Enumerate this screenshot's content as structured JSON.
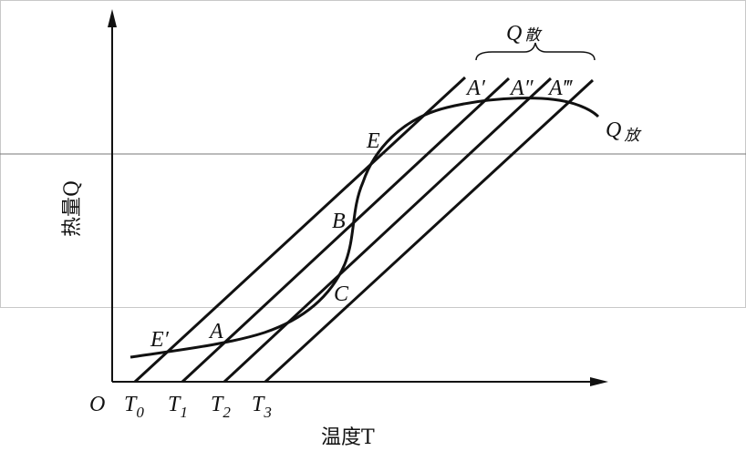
{
  "diagram": {
    "y_axis_label": "热量Q",
    "x_axis_label": "温度T",
    "origin": "O",
    "temperature_ticks": [
      {
        "base": "T",
        "sub": "0"
      },
      {
        "base": "T",
        "sub": "1"
      },
      {
        "base": "T",
        "sub": "2"
      },
      {
        "base": "T",
        "sub": "3"
      }
    ],
    "curve_label": {
      "base": "Q",
      "sub": "放"
    },
    "lines_label": {
      "base": "Q",
      "sub": "散"
    },
    "line_end_labels": [
      "A′",
      "A″",
      "A‴"
    ],
    "points": [
      "E",
      "B",
      "C",
      "E′",
      "A"
    ]
  }
}
